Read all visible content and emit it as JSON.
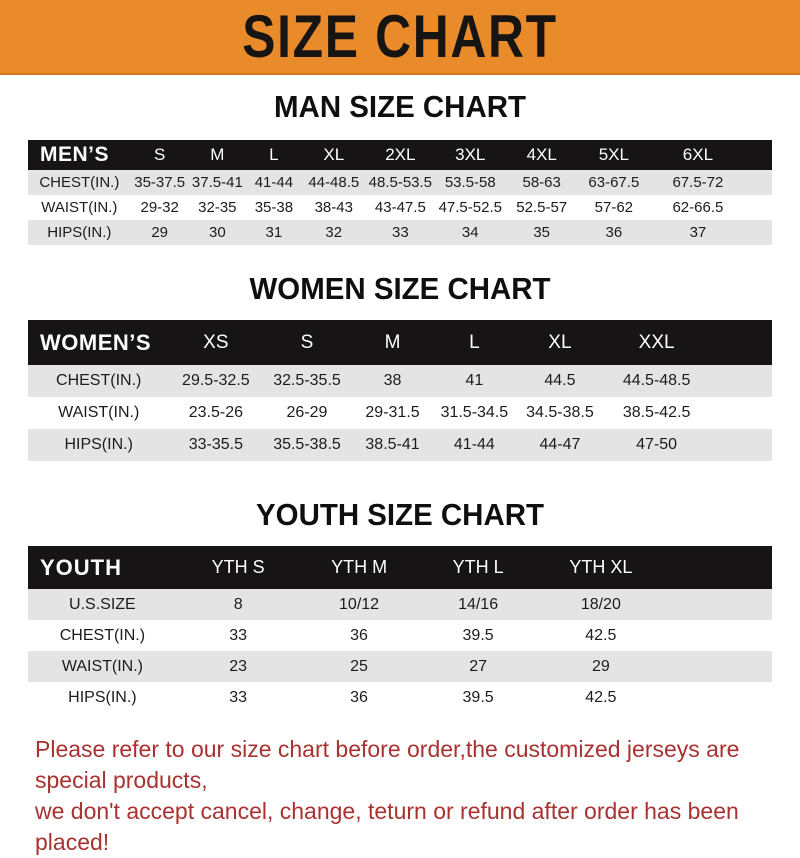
{
  "banner": {
    "title": "SIZE CHART",
    "bg_color": "#E98A2B",
    "text_color": "#171514"
  },
  "sections": [
    {
      "heading": "MAN SIZE CHART",
      "label": "MEN’S",
      "columns": [
        "S",
        "M",
        "L",
        "XL",
        "2XL",
        "3XL",
        "4XL",
        "5XL",
        "6XL"
      ],
      "rows": [
        {
          "label": "CHEST(IN.)",
          "values": [
            "35-37.5",
            "37.5-41",
            "41-44",
            "44-48.5",
            "48.5-53.5",
            "53.5-58",
            "58-63",
            "63-67.5",
            "67.5-72"
          ]
        },
        {
          "label": "WAIST(IN.)",
          "values": [
            "29-32",
            "32-35",
            "35-38",
            "38-43",
            "43-47.5",
            "47.5-52.5",
            "52.5-57",
            "57-62",
            "62-66.5"
          ]
        },
        {
          "label": "HIPS(IN.)",
          "values": [
            "29",
            "30",
            "31",
            "32",
            "33",
            "34",
            "35",
            "36",
            "37"
          ]
        }
      ]
    },
    {
      "heading": "WOMEN SIZE CHART",
      "label": "WOMEN’S",
      "columns": [
        "XS",
        "S",
        "M",
        "L",
        "XL",
        "XXL"
      ],
      "rows": [
        {
          "label": "CHEST(IN.)",
          "values": [
            "29.5-32.5",
            "32.5-35.5",
            "38",
            "41",
            "44.5",
            "44.5-48.5"
          ]
        },
        {
          "label": "WAIST(IN.)",
          "values": [
            "23.5-26",
            "26-29",
            "29-31.5",
            "31.5-34.5",
            "34.5-38.5",
            "38.5-42.5"
          ]
        },
        {
          "label": "HIPS(IN.)",
          "values": [
            "33-35.5",
            "35.5-38.5",
            "38.5-41",
            "41-44",
            "44-47",
            "47-50"
          ]
        }
      ]
    },
    {
      "heading": "YOUTH SIZE CHART",
      "label": "YOUTH",
      "columns": [
        "YTH S",
        "YTH M",
        "YTH L",
        "YTH XL"
      ],
      "rows": [
        {
          "label": "U.S.SIZE",
          "values": [
            "8",
            "10/12",
            "14/16",
            "18/20"
          ]
        },
        {
          "label": "CHEST(IN.)",
          "values": [
            "33",
            "36",
            "39.5",
            "42.5"
          ]
        },
        {
          "label": "WAIST(IN.)",
          "values": [
            "23",
            "25",
            "27",
            "29"
          ]
        },
        {
          "label": "HIPS(IN.)",
          "values": [
            "33",
            "36",
            "39.5",
            "42.5"
          ]
        }
      ]
    }
  ],
  "footer": {
    "line1": "Please refer to our size chart before order,the customized jerseys are special products,",
    "line2": "we don't accept cancel, change, teturn or refund after order has been placed!",
    "color": "#A93230"
  }
}
